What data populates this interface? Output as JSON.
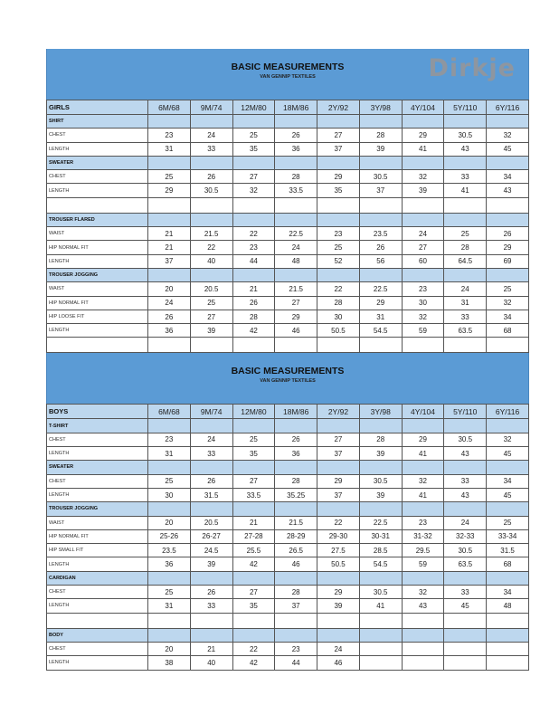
{
  "header": {
    "title": "BASIC MEASUREMENTS",
    "subtitle": "VAN GENNIP TEXTILES",
    "logo_text": "Dirkje",
    "band_color": "#5b9bd5",
    "section_color": "#bdd7ee"
  },
  "sizes": [
    "6M/68",
    "9M/74",
    "12M/80",
    "18M/86",
    "2Y/92",
    "3Y/98",
    "4Y/104",
    "5Y/110",
    "6Y/116"
  ],
  "tables": [
    {
      "group": "GIRLS",
      "rows": [
        {
          "type": "section",
          "label": "SHIRT"
        },
        {
          "type": "data",
          "label": "CHEST",
          "values": [
            "23",
            "24",
            "25",
            "26",
            "27",
            "28",
            "29",
            "30.5",
            "32"
          ]
        },
        {
          "type": "data",
          "label": "LENGTH",
          "values": [
            "31",
            "33",
            "35",
            "36",
            "37",
            "39",
            "41",
            "43",
            "45"
          ]
        },
        {
          "type": "section",
          "label": "SWEATER"
        },
        {
          "type": "data",
          "label": "CHEST",
          "values": [
            "25",
            "26",
            "27",
            "28",
            "29",
            "30.5",
            "32",
            "33",
            "34"
          ]
        },
        {
          "type": "data",
          "label": "LENGTH",
          "values": [
            "29",
            "30.5",
            "32",
            "33.5",
            "35",
            "37",
            "39",
            "41",
            "43"
          ]
        },
        {
          "type": "empty"
        },
        {
          "type": "section",
          "label": "TROUSER FLARED"
        },
        {
          "type": "data",
          "label": "WAIST",
          "values": [
            "21",
            "21.5",
            "22",
            "22.5",
            "23",
            "23.5",
            "24",
            "25",
            "26"
          ]
        },
        {
          "type": "data",
          "label": "HIP NORMAL FIT",
          "values": [
            "21",
            "22",
            "23",
            "24",
            "25",
            "26",
            "27",
            "28",
            "29"
          ]
        },
        {
          "type": "data",
          "label": "LENGTH",
          "values": [
            "37",
            "40",
            "44",
            "48",
            "52",
            "56",
            "60",
            "64.5",
            "69"
          ]
        },
        {
          "type": "section",
          "label": "TROUSER JOGGING"
        },
        {
          "type": "data",
          "label": "WAIST",
          "values": [
            "20",
            "20.5",
            "21",
            "21.5",
            "22",
            "22.5",
            "23",
            "24",
            "25"
          ]
        },
        {
          "type": "data",
          "label": "HIP NORMAL FIT",
          "values": [
            "24",
            "25",
            "26",
            "27",
            "28",
            "29",
            "30",
            "31",
            "32"
          ]
        },
        {
          "type": "data",
          "label": "HIP LOOSE FIT",
          "values": [
            "26",
            "27",
            "28",
            "29",
            "30",
            "31",
            "32",
            "33",
            "34"
          ]
        },
        {
          "type": "data",
          "label": "LENGTH",
          "values": [
            "36",
            "39",
            "42",
            "46",
            "50.5",
            "54.5",
            "59",
            "63.5",
            "68"
          ]
        },
        {
          "type": "empty"
        }
      ]
    },
    {
      "group": "BOYS",
      "rows": [
        {
          "type": "section",
          "label": "T-SHIRT"
        },
        {
          "type": "data",
          "label": "CHEST",
          "values": [
            "23",
            "24",
            "25",
            "26",
            "27",
            "28",
            "29",
            "30.5",
            "32"
          ]
        },
        {
          "type": "data",
          "label": "LENGTH",
          "values": [
            "31",
            "33",
            "35",
            "36",
            "37",
            "39",
            "41",
            "43",
            "45"
          ]
        },
        {
          "type": "section",
          "label": "SWEATER"
        },
        {
          "type": "data",
          "label": "CHEST",
          "values": [
            "25",
            "26",
            "27",
            "28",
            "29",
            "30.5",
            "32",
            "33",
            "34"
          ]
        },
        {
          "type": "data",
          "label": "LENGTH",
          "values": [
            "30",
            "31.5",
            "33.5",
            "35.25",
            "37",
            "39",
            "41",
            "43",
            "45"
          ]
        },
        {
          "type": "section",
          "label": "TROUSER JOGGING"
        },
        {
          "type": "data",
          "label": "WAIST",
          "values": [
            "20",
            "20.5",
            "21",
            "21.5",
            "22",
            "22.5",
            "23",
            "24",
            "25"
          ]
        },
        {
          "type": "data",
          "label": "HIP NORMAL FIT",
          "values": [
            "25-26",
            "26-27",
            "27-28",
            "28-29",
            "29-30",
            "30-31",
            "31-32",
            "32-33",
            "33-34"
          ]
        },
        {
          "type": "data",
          "label": "HIP SMALL FIT",
          "values": [
            "23.5",
            "24.5",
            "25.5",
            "26.5",
            "27.5",
            "28.5",
            "29.5",
            "30.5",
            "31.5"
          ]
        },
        {
          "type": "data",
          "label": "LENGTH",
          "values": [
            "36",
            "39",
            "42",
            "46",
            "50.5",
            "54.5",
            "59",
            "63.5",
            "68"
          ]
        },
        {
          "type": "section",
          "label": "CARDIGAN"
        },
        {
          "type": "data",
          "label": "CHEST",
          "values": [
            "25",
            "26",
            "27",
            "28",
            "29",
            "30.5",
            "32",
            "33",
            "34"
          ]
        },
        {
          "type": "data",
          "label": "LENGTH",
          "values": [
            "31",
            "33",
            "35",
            "37",
            "39",
            "41",
            "43",
            "45",
            "48"
          ]
        },
        {
          "type": "empty"
        },
        {
          "type": "section",
          "label": "BODY"
        },
        {
          "type": "data",
          "label": "CHEST",
          "values": [
            "20",
            "21",
            "22",
            "23",
            "24",
            "",
            "",
            "",
            ""
          ]
        },
        {
          "type": "data",
          "label": "LENGTH",
          "values": [
            "38",
            "40",
            "42",
            "44",
            "46",
            "",
            "",
            "",
            ""
          ]
        }
      ]
    }
  ]
}
